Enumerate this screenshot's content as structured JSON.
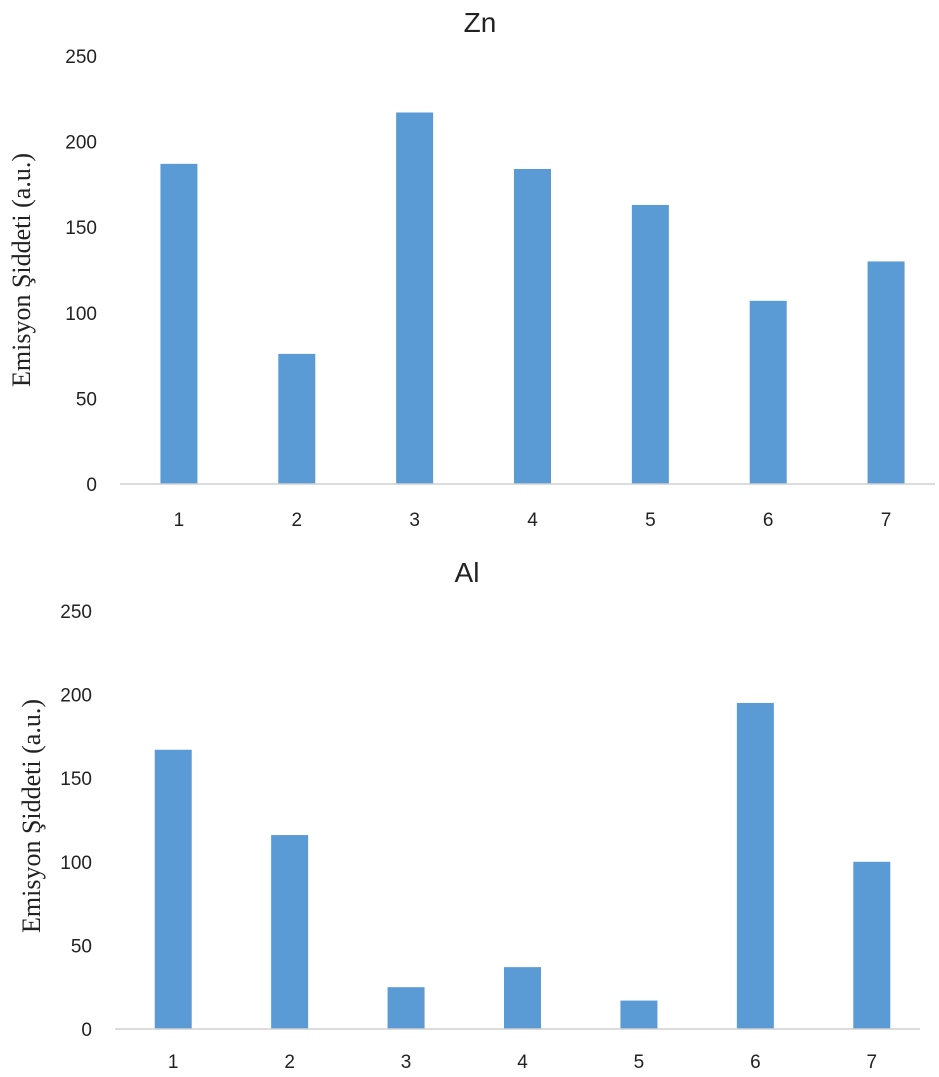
{
  "colors": {
    "bar": "#5b9bd5",
    "axis": "#d0d0d0",
    "text": "#222222"
  },
  "chart_data": [
    {
      "type": "bar",
      "title": "Zn",
      "ylabel": "Emisyon Şiddeti (a.u.)",
      "xlabel": "",
      "categories": [
        "1",
        "2",
        "3",
        "4",
        "5",
        "6",
        "7"
      ],
      "values": [
        187,
        76,
        217,
        184,
        163,
        107,
        130
      ],
      "ylim": [
        0,
        250
      ],
      "yticks": [
        "0",
        "50",
        "100",
        "150",
        "200",
        "250"
      ],
      "grid": false,
      "legend": "none"
    },
    {
      "type": "bar",
      "title": "Al",
      "ylabel": "Emisyon Şiddeti (a.u.)",
      "xlabel": "",
      "categories": [
        "1",
        "2",
        "3",
        "4",
        "5",
        "6",
        "7"
      ],
      "values": [
        167,
        116,
        25,
        37,
        17,
        195,
        100
      ],
      "ylim": [
        0,
        250
      ],
      "yticks": [
        "0",
        "50",
        "100",
        "150",
        "200",
        "250"
      ],
      "grid": false,
      "legend": "none"
    }
  ]
}
